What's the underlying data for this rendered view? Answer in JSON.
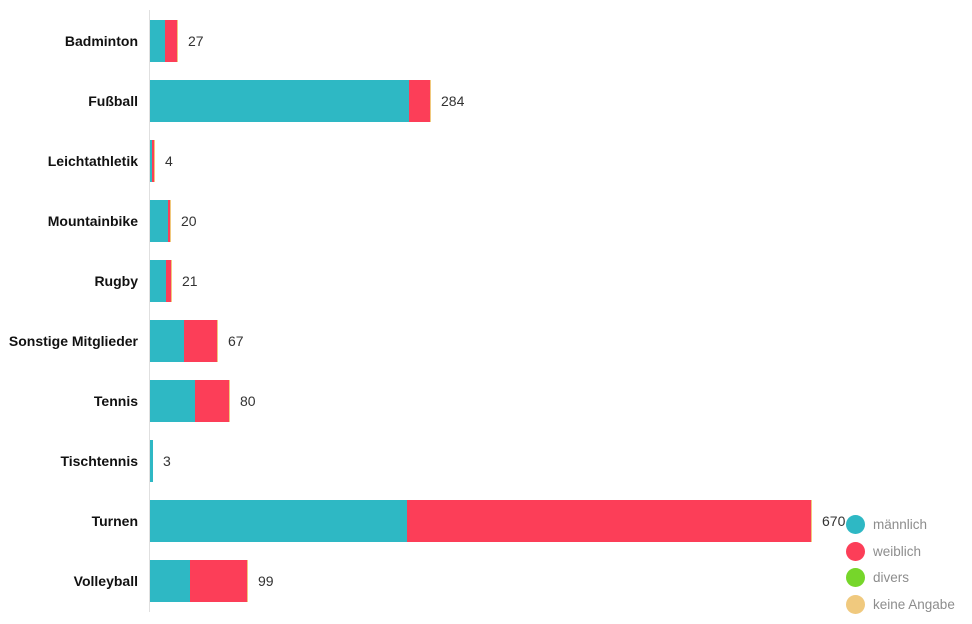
{
  "chart_data": {
    "type": "bar",
    "orientation": "horizontal",
    "stacked": true,
    "title": "",
    "xlabel": "",
    "ylabel": "",
    "xlim": [
      0,
      680
    ],
    "grid": false,
    "categories": [
      "Badminton",
      "Fußball",
      "Leichtathletik",
      "Mountainbike",
      "Rugby",
      "Sonstige Mitglieder",
      "Tennis",
      "Tischtennis",
      "Turnen",
      "Volleyball"
    ],
    "series": [
      {
        "name": "männlich",
        "color": "#2EB8C4",
        "values": [
          15,
          263,
          2,
          18,
          16,
          34,
          46,
          3,
          260,
          41
        ]
      },
      {
        "name": "weiblich",
        "color": "#FC3E58",
        "values": [
          12,
          21,
          2,
          2,
          5,
          33,
          34,
          0,
          410,
          58
        ]
      },
      {
        "name": "divers",
        "color": "#76D62A",
        "values": [
          0,
          0,
          0,
          0,
          0,
          0,
          0,
          0,
          0,
          0
        ]
      },
      {
        "name": "keine Angabe",
        "color": "#F0C97E",
        "values": [
          0,
          0,
          0,
          0,
          0,
          0,
          0,
          0,
          0,
          0
        ]
      }
    ],
    "totals": [
      27,
      284,
      4,
      20,
      21,
      67,
      80,
      3,
      670,
      99
    ],
    "total_labels": [
      "27",
      "284",
      "4",
      "20",
      "21",
      "67",
      "80",
      "3",
      "670",
      "99"
    ],
    "legend": {
      "position": "bottom-right",
      "entries": [
        {
          "label": "männlich",
          "color": "#2EB8C4"
        },
        {
          "label": "weiblich",
          "color": "#FC3E58"
        },
        {
          "label": "divers",
          "color": "#76D62A"
        },
        {
          "label": "keine Angabe",
          "color": "#F0C97E"
        }
      ]
    },
    "colors": {
      "background": "#FFFFFF",
      "axis_line": "#E0E0E0",
      "category_label": "#111111",
      "value_label": "#333333",
      "legend_label": "#8D8D8D",
      "bar_edge": "#F0C97E"
    }
  }
}
